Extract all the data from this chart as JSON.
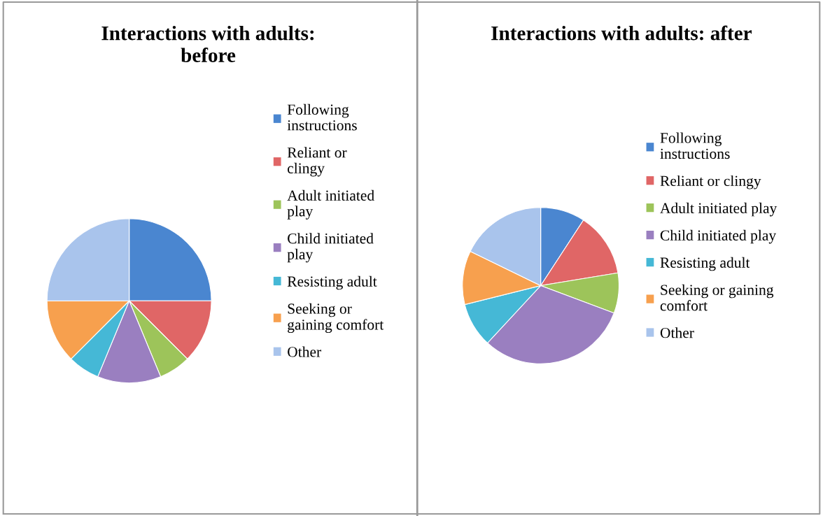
{
  "chart_data": [
    {
      "type": "pie",
      "title": "Interactions with adults: before",
      "categories": [
        "Following instructions",
        "Reliant or clingy",
        "Adult initiated play",
        "Child initiated play",
        "Resisting adult",
        "Seeking or gaining comfort",
        "Other"
      ],
      "values": [
        25,
        12.5,
        6.25,
        12.5,
        6.25,
        12.5,
        25
      ],
      "colors": [
        "#4a86d0",
        "#e06666",
        "#9dc45a",
        "#9a7fc0",
        "#45b8d6",
        "#f7a04e",
        "#a9c4ec"
      ],
      "legend": "right"
    },
    {
      "type": "pie",
      "title": "Interactions with adults: after",
      "categories": [
        "Following instructions",
        "Reliant or clingy",
        "Adult initiated play",
        "Child initiated play",
        "Resisting adult",
        "Seeking or gaining comfort",
        "Other"
      ],
      "values": [
        9.2,
        13.2,
        8.3,
        31.2,
        9.2,
        11.1,
        17.8
      ],
      "colors": [
        "#4a86d0",
        "#e06666",
        "#9dc45a",
        "#9a7fc0",
        "#45b8d6",
        "#f7a04e",
        "#a9c4ec"
      ],
      "legend": "right"
    }
  ]
}
